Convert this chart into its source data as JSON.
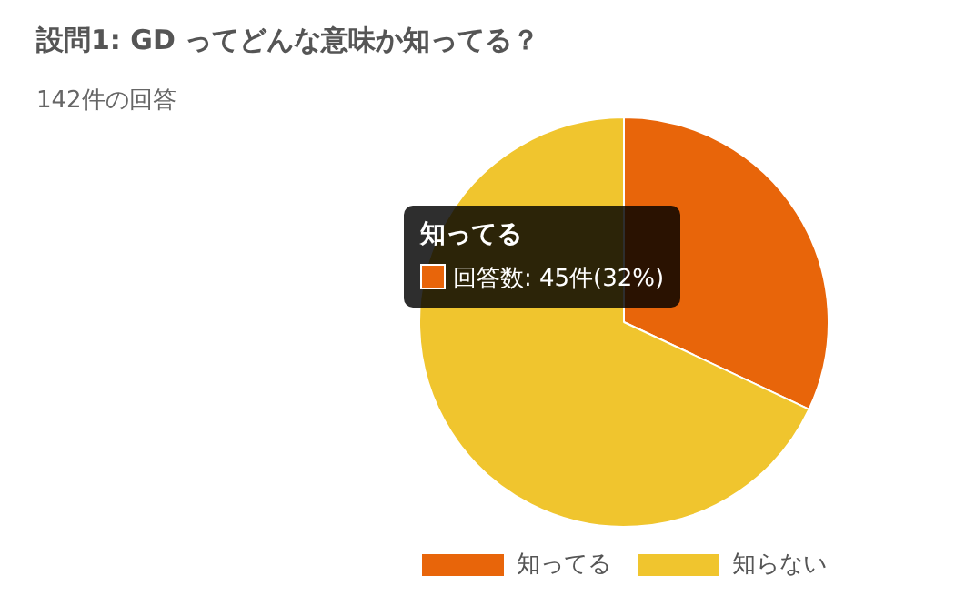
{
  "chart_data": {
    "type": "pie",
    "title": "設問1: GD ってどんな意味か知ってる？",
    "subtitle": "142件の回答",
    "categories": [
      "知ってる",
      "知らない"
    ],
    "values": [
      32,
      68
    ],
    "colors": [
      "#e8650a",
      "#f0c52e"
    ],
    "legend": "bottom",
    "annotations": [
      "知ってる",
      "回答数: 45件(32%)"
    ]
  }
}
